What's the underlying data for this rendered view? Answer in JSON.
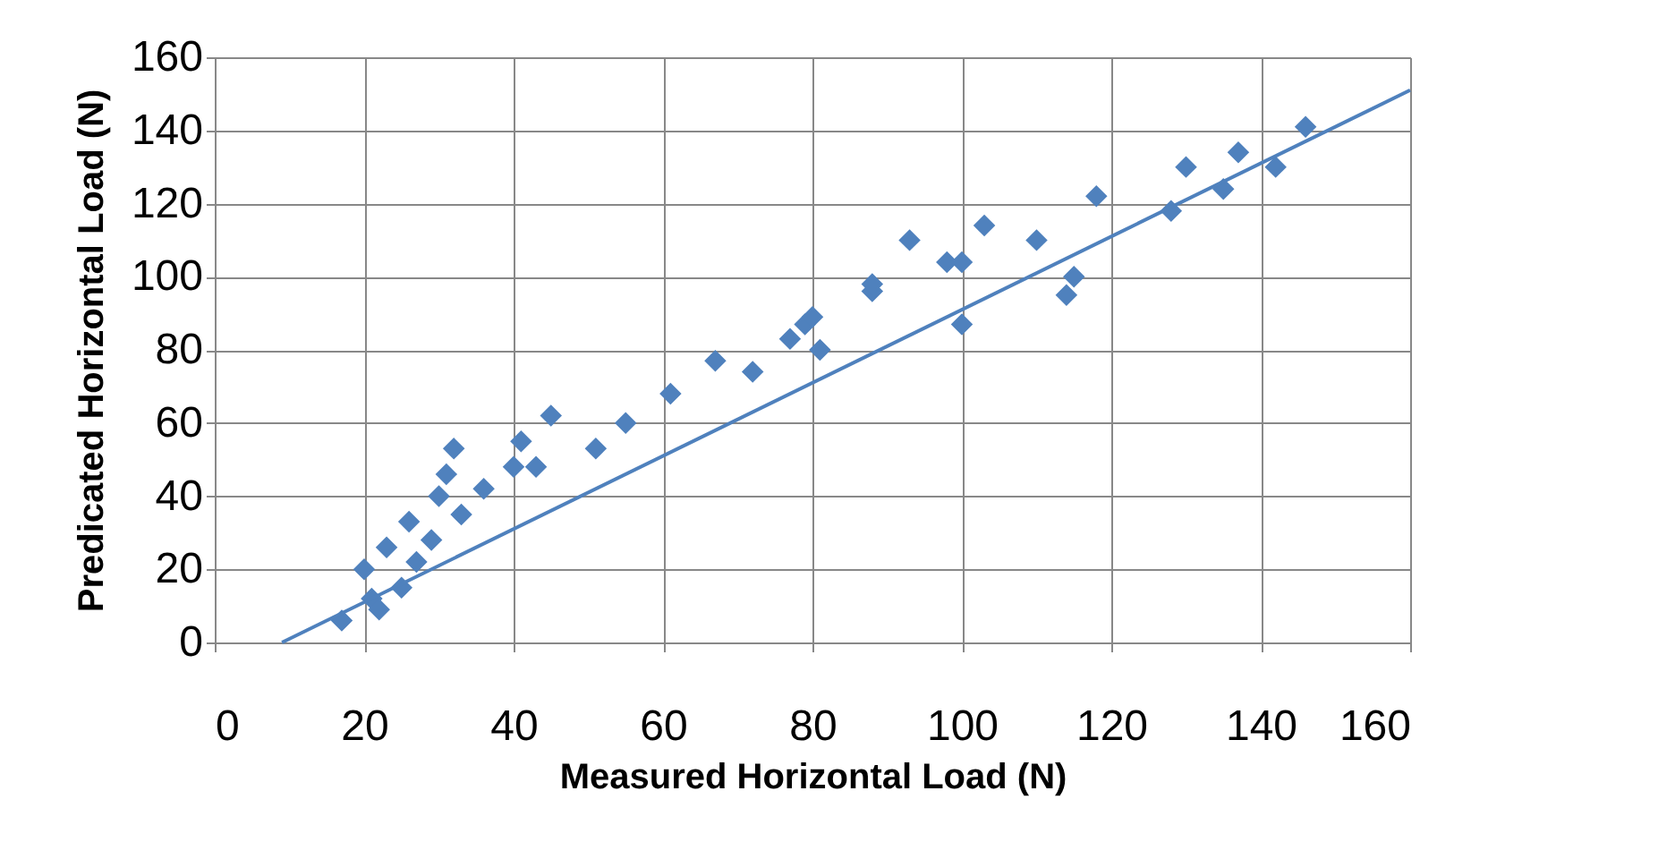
{
  "chart_data": {
    "type": "scatter",
    "xlabel": "Measured  Horizontal Load (N)",
    "ylabel": "Predicated  Horizontal Load (N)",
    "xlim": [
      0,
      160
    ],
    "ylim": [
      0,
      160
    ],
    "xticks": [
      0,
      20,
      40,
      60,
      80,
      100,
      120,
      140,
      160
    ],
    "yticks": [
      0,
      20,
      40,
      60,
      80,
      100,
      120,
      140,
      160
    ],
    "grid": true,
    "series": [
      {
        "color": "#4f81bd",
        "marker": "diamond",
        "x": [
          17,
          20,
          21,
          22,
          23,
          25,
          26,
          27,
          29,
          30,
          31,
          32,
          33,
          36,
          40,
          41,
          43,
          45,
          51,
          55,
          61,
          67,
          72,
          77,
          79,
          80,
          81,
          88,
          88,
          93,
          98,
          100,
          100,
          103,
          110,
          114,
          115,
          118,
          128,
          130,
          135,
          137,
          142,
          146
        ],
        "values": [
          6,
          20,
          12,
          9,
          26,
          15,
          33,
          22,
          28,
          40,
          46,
          53,
          35,
          42,
          48,
          55,
          48,
          62,
          53,
          60,
          68,
          77,
          74,
          83,
          87,
          89,
          80,
          96,
          98,
          110,
          104,
          104,
          87,
          114,
          110,
          95,
          100,
          122,
          118,
          130,
          124,
          134,
          130,
          141
        ]
      },
      {
        "type": "line",
        "color": "#4f81bd",
        "x": [
          9,
          160
        ],
        "values": [
          0,
          151
        ]
      }
    ]
  }
}
